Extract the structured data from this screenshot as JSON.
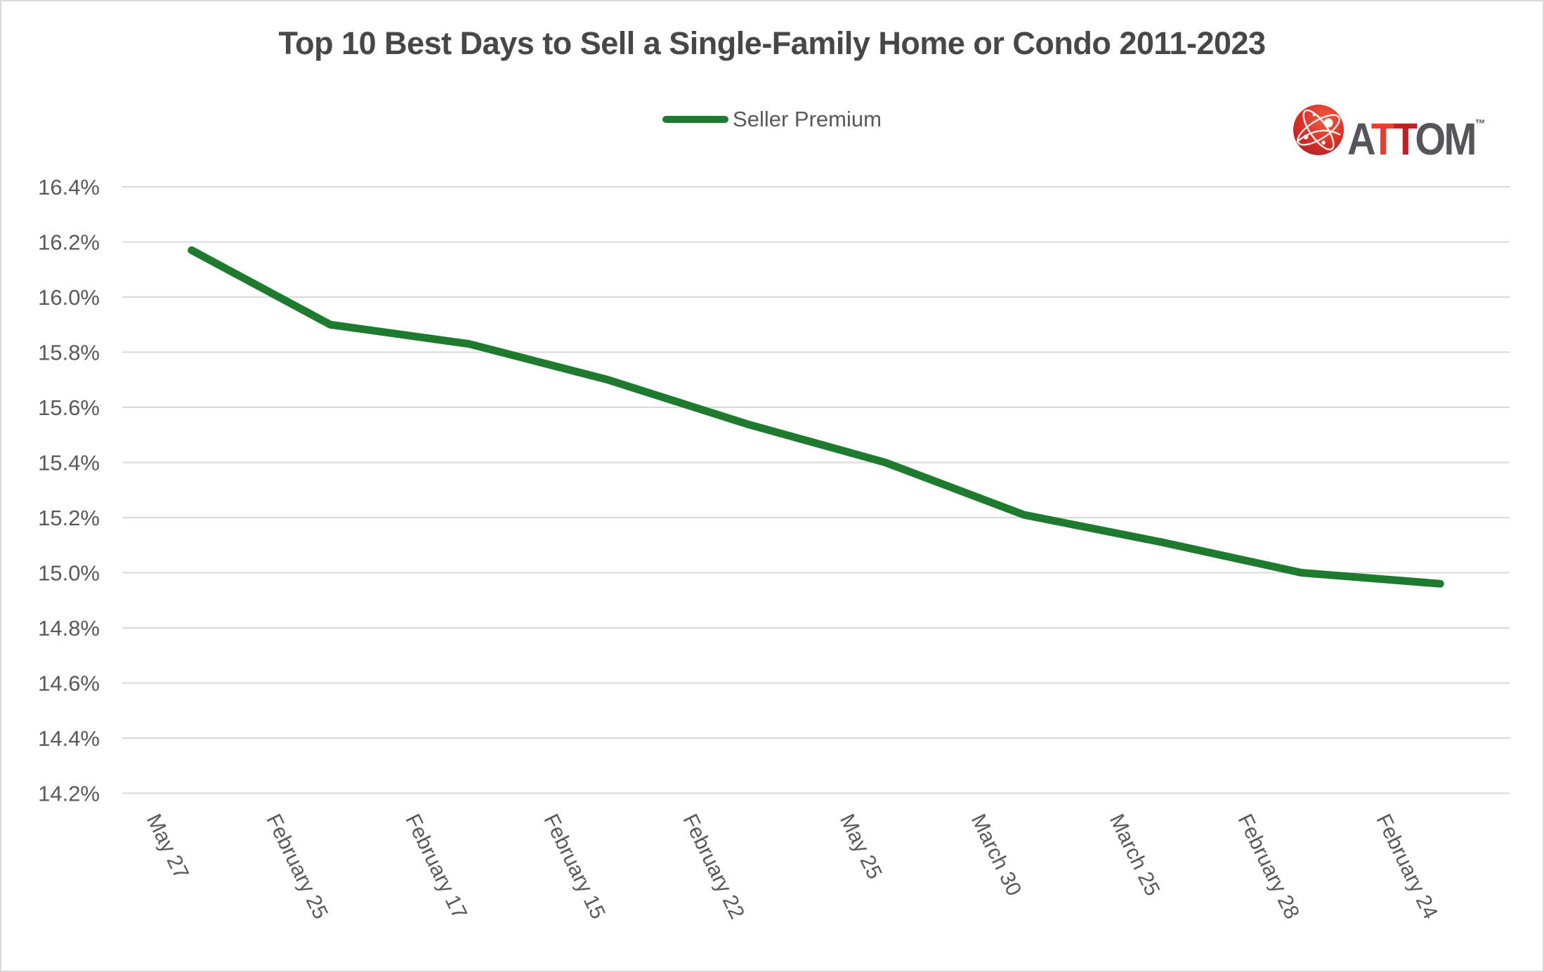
{
  "page": {
    "background": "#ffffff",
    "border_color": "#d9d9d9"
  },
  "legend": {
    "swatch_color": "#1e7b2e"
  },
  "logo": {
    "brand_letters": [
      {
        "char": "A",
        "color": "#54565a"
      },
      {
        "char": "T",
        "color": "#ee3b2c"
      },
      {
        "char": "T",
        "color": "#bd2126"
      },
      {
        "char": "O",
        "color": "#54565a"
      },
      {
        "char": "M",
        "color": "#54565a"
      }
    ],
    "tm": "™",
    "globe_colors": {
      "light": "#ef5a41",
      "main": "#d93127",
      "dark": "#a81e25"
    }
  },
  "chart_data": {
    "type": "line",
    "title": "Top 10 Best Days to Sell a Single-Family Home or Condo 2011-2023",
    "categories": [
      "May 27",
      "February 25",
      "February 17",
      "February 15",
      "February 22",
      "May 25",
      "March 30",
      "March 25",
      "February 28",
      "February 24"
    ],
    "series": [
      {
        "name": "Seller Premium",
        "color": "#1e7b2e",
        "values": [
          16.17,
          15.9,
          15.83,
          15.7,
          15.54,
          15.4,
          15.21,
          15.11,
          15.0,
          14.96
        ]
      }
    ],
    "xlabel": "",
    "ylabel": "",
    "ylim": [
      14.2,
      16.4
    ],
    "ytick_step": 0.2,
    "ytick_labels": [
      "16.4%",
      "16.2%",
      "16.0%",
      "15.8%",
      "15.6%",
      "15.4%",
      "15.2%",
      "15.0%",
      "14.8%",
      "14.6%",
      "14.4%",
      "14.2%"
    ],
    "grid": "horizontal",
    "grid_color": "#d9d9d9",
    "axis_text_color": "#595959",
    "legend_position": "top-center"
  }
}
